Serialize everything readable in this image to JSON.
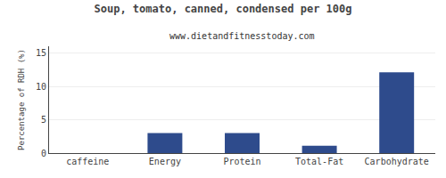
{
  "chart_data": {
    "type": "bar",
    "title": "Soup, tomato, canned, condensed per 100g",
    "subtitle": "www.dietandfitnesstoday.com",
    "ylabel": "Percentage of RDH (%)",
    "categories": [
      "caffeine",
      "Energy",
      "Protein",
      "Total-Fat",
      "Carbohydrate"
    ],
    "values": [
      0,
      3.0,
      3.0,
      1.1,
      12.1
    ],
    "color": "#2e4b8c",
    "ylim": [
      0,
      16
    ],
    "yticks": [
      0,
      5,
      10,
      15
    ],
    "grid": true
  }
}
